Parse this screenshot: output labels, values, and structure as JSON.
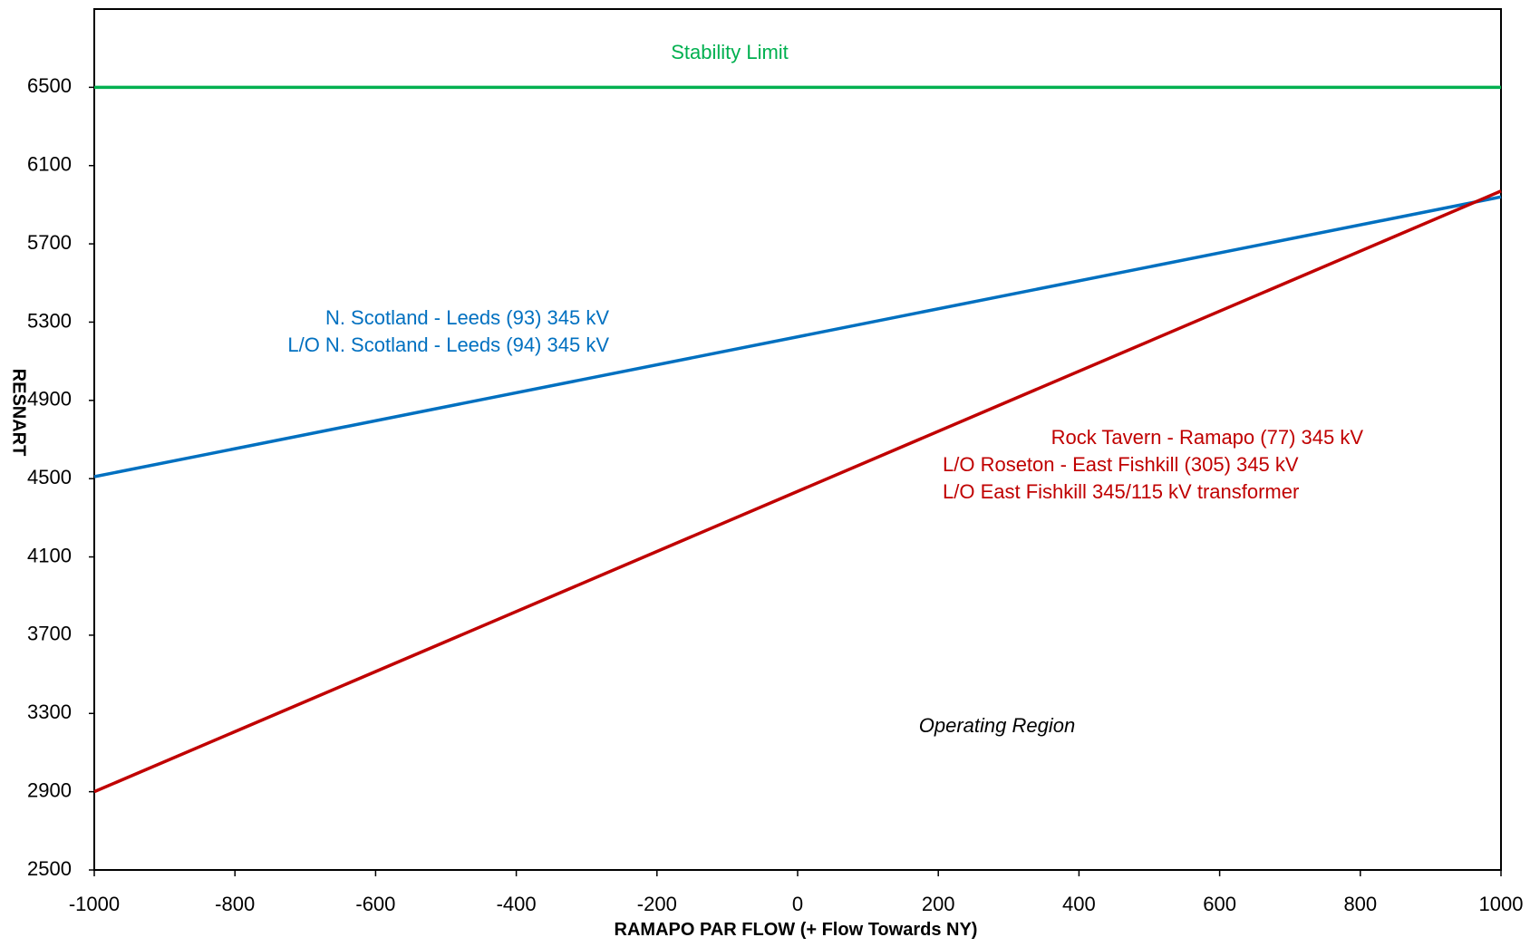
{
  "chart_data": {
    "type": "line",
    "xlabel": "RAMAPO PAR FLOW (+ Flow Towards  NY)",
    "ylabel": "RESNART",
    "xlim": [
      -1000,
      1000
    ],
    "ylim": [
      2500,
      6900
    ],
    "xticks": [
      -1000,
      -800,
      -600,
      -400,
      -200,
      0,
      200,
      400,
      600,
      800,
      1000
    ],
    "yticks": [
      2500,
      2900,
      3300,
      3700,
      4100,
      4500,
      4900,
      5300,
      5700,
      6100,
      6500
    ],
    "series": [
      {
        "name": "Stability Limit",
        "color": "#00b050",
        "x": [
          -1000,
          1000
        ],
        "y": [
          6500,
          6500
        ]
      },
      {
        "name": "N. Scotland - Leeds (93) 345 kV",
        "color": "#0070c0",
        "x": [
          -1000,
          1000
        ],
        "y": [
          4510,
          5940
        ]
      },
      {
        "name": "Rock Tavern - Ramapo (77) 345 kV",
        "color": "#c00000",
        "x": [
          -1000,
          1000
        ],
        "y": [
          2900,
          5970
        ]
      }
    ],
    "annotations": {
      "stability": "Stability Limit",
      "blue_line1": "N. Scotland - Leeds (93)  345 kV",
      "blue_line2": "L/O  N. Scotland - Leeds (94)  345 kV",
      "red_line1": "Rock Tavern   - Ramapo (77)  345 kV",
      "red_line2": "L/O Roseton - East Fishkill  (305)  345 kV",
      "red_line3": "L/O East Fishkill 345/115  kV transformer",
      "region": "Operating Region"
    }
  }
}
